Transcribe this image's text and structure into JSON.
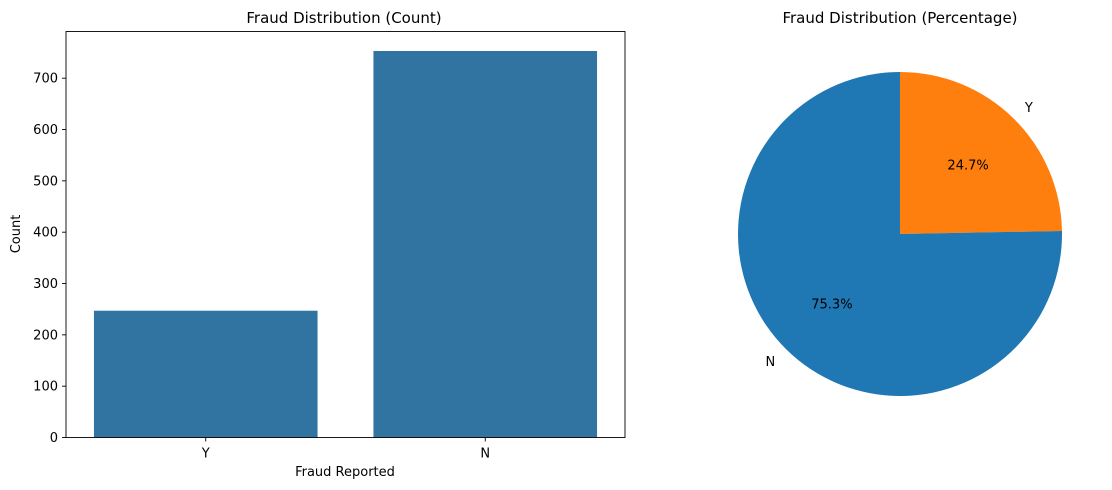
{
  "chart_data": [
    {
      "type": "bar",
      "title": "Fraud Distribution (Count)",
      "xlabel": "Fraud Reported",
      "ylabel": "Count",
      "categories": [
        "Y",
        "N"
      ],
      "values": [
        247,
        753
      ],
      "ylim": [
        0,
        791
      ],
      "yticks": [
        0,
        100,
        200,
        300,
        400,
        500,
        600,
        700
      ],
      "bar_color": "#3274a1",
      "grid": false
    },
    {
      "type": "pie",
      "title": "Fraud Distribution (Percentage)",
      "slices": [
        {
          "label": "Y",
          "value": 24.7,
          "pct_label": "24.7%",
          "color": "#ff7f0e"
        },
        {
          "label": "N",
          "value": 75.3,
          "pct_label": "75.3%",
          "color": "#1f77b4"
        }
      ]
    }
  ]
}
